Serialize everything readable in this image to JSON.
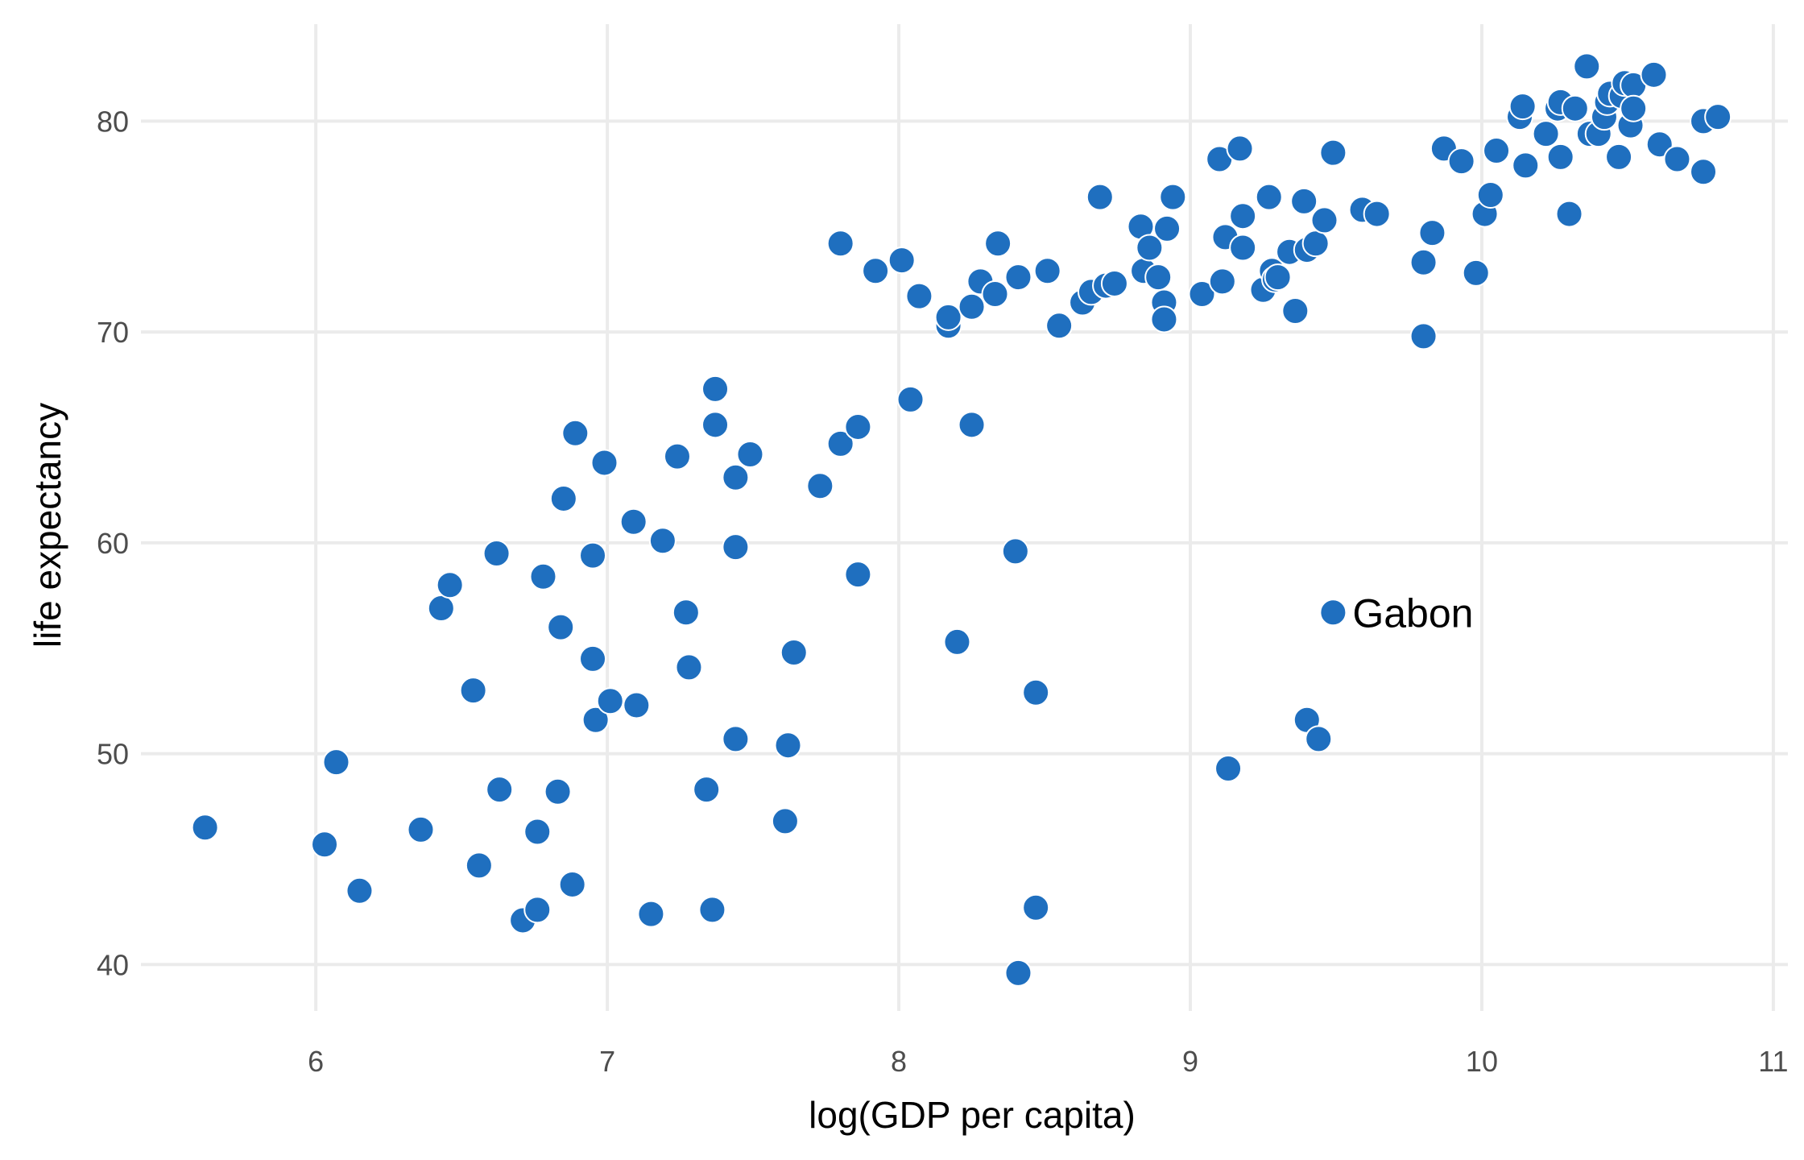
{
  "chart_data": {
    "type": "scatter",
    "title": "",
    "xlabel": "log(GDP per capita)",
    "ylabel": "life expectancy",
    "xlim": [
      5.4,
      11.05
    ],
    "ylim": [
      37.8,
      84.6
    ],
    "xticks": [
      6,
      7,
      8,
      9,
      10,
      11
    ],
    "yticks": [
      40,
      50,
      60,
      70,
      80
    ],
    "grid": true,
    "legend": "none",
    "point_color": "#1f6fbf",
    "point_outline": "#ffffff",
    "series": [
      {
        "points": [
          [
            5.62,
            46.5
          ],
          [
            6.03,
            45.7
          ],
          [
            6.07,
            49.6
          ],
          [
            6.15,
            43.5
          ],
          [
            6.36,
            46.4
          ],
          [
            6.43,
            56.9
          ],
          [
            6.46,
            58.0
          ],
          [
            6.54,
            53.0
          ],
          [
            6.56,
            44.7
          ],
          [
            6.62,
            59.5
          ],
          [
            6.63,
            48.3
          ],
          [
            6.71,
            42.1
          ],
          [
            6.76,
            42.6
          ],
          [
            6.76,
            46.3
          ],
          [
            6.78,
            58.4
          ],
          [
            6.83,
            48.2
          ],
          [
            6.84,
            56.0
          ],
          [
            6.85,
            62.1
          ],
          [
            6.88,
            43.8
          ],
          [
            6.89,
            65.2
          ],
          [
            6.95,
            54.5
          ],
          [
            6.95,
            59.4
          ],
          [
            6.96,
            51.6
          ],
          [
            6.99,
            63.8
          ],
          [
            7.01,
            52.5
          ],
          [
            7.09,
            61.0
          ],
          [
            7.1,
            52.3
          ],
          [
            7.15,
            42.4
          ],
          [
            7.19,
            60.1
          ],
          [
            7.24,
            64.1
          ],
          [
            7.27,
            56.7
          ],
          [
            7.28,
            54.1
          ],
          [
            7.34,
            48.3
          ],
          [
            7.36,
            42.6
          ],
          [
            7.37,
            67.3
          ],
          [
            7.37,
            65.6
          ],
          [
            7.44,
            50.7
          ],
          [
            7.44,
            63.1
          ],
          [
            7.44,
            59.8
          ],
          [
            7.49,
            64.2
          ],
          [
            7.61,
            46.8
          ],
          [
            7.62,
            50.4
          ],
          [
            7.64,
            54.8
          ],
          [
            7.73,
            62.7
          ],
          [
            7.8,
            64.7
          ],
          [
            7.8,
            74.2
          ],
          [
            7.86,
            65.5
          ],
          [
            7.86,
            58.5
          ],
          [
            7.92,
            72.9
          ],
          [
            8.01,
            73.4
          ],
          [
            8.04,
            66.8
          ],
          [
            8.07,
            71.7
          ],
          [
            8.17,
            70.3
          ],
          [
            8.17,
            70.7
          ],
          [
            8.2,
            55.3
          ],
          [
            8.25,
            71.2
          ],
          [
            8.25,
            65.6
          ],
          [
            8.28,
            72.4
          ],
          [
            8.33,
            71.8
          ],
          [
            8.34,
            74.2
          ],
          [
            8.4,
            59.6
          ],
          [
            8.41,
            72.6
          ],
          [
            8.41,
            39.6
          ],
          [
            8.47,
            42.7
          ],
          [
            8.47,
            52.9
          ],
          [
            8.51,
            72.9
          ],
          [
            8.55,
            70.3
          ],
          [
            8.63,
            71.4
          ],
          [
            8.66,
            71.9
          ],
          [
            8.69,
            76.4
          ],
          [
            8.71,
            72.2
          ],
          [
            8.74,
            72.3
          ],
          [
            8.83,
            75.0
          ],
          [
            8.84,
            72.9
          ],
          [
            8.86,
            74.0
          ],
          [
            8.89,
            72.6
          ],
          [
            8.91,
            71.4
          ],
          [
            8.91,
            70.6
          ],
          [
            8.92,
            74.9
          ],
          [
            8.94,
            76.4
          ],
          [
            9.04,
            71.8
          ],
          [
            9.1,
            78.2
          ],
          [
            9.11,
            72.4
          ],
          [
            9.12,
            74.5
          ],
          [
            9.13,
            49.3
          ],
          [
            9.17,
            78.7
          ],
          [
            9.18,
            75.5
          ],
          [
            9.18,
            74.0
          ],
          [
            9.25,
            72.0
          ],
          [
            9.27,
            76.4
          ],
          [
            9.28,
            72.9
          ],
          [
            9.29,
            72.5
          ],
          [
            9.3,
            72.6
          ],
          [
            9.34,
            73.8
          ],
          [
            9.36,
            71.0
          ],
          [
            9.39,
            76.2
          ],
          [
            9.4,
            73.9
          ],
          [
            9.4,
            51.6
          ],
          [
            9.43,
            74.2
          ],
          [
            9.44,
            50.7
          ],
          [
            9.46,
            75.3
          ],
          [
            9.49,
            78.5
          ],
          [
            9.49,
            56.7
          ],
          [
            9.59,
            75.8
          ],
          [
            9.64,
            75.6
          ],
          [
            9.8,
            73.3
          ],
          [
            9.8,
            69.8
          ],
          [
            9.83,
            74.7
          ],
          [
            9.87,
            78.7
          ],
          [
            9.93,
            78.1
          ],
          [
            9.98,
            72.8
          ],
          [
            10.01,
            75.6
          ],
          [
            10.03,
            76.5
          ],
          [
            10.05,
            78.6
          ],
          [
            10.13,
            80.2
          ],
          [
            10.14,
            80.7
          ],
          [
            10.15,
            77.9
          ],
          [
            10.22,
            79.4
          ],
          [
            10.26,
            80.6
          ],
          [
            10.27,
            78.3
          ],
          [
            10.27,
            80.9
          ],
          [
            10.3,
            75.6
          ],
          [
            10.32,
            80.6
          ],
          [
            10.36,
            82.6
          ],
          [
            10.37,
            79.4
          ],
          [
            10.4,
            79.4
          ],
          [
            10.42,
            80.2
          ],
          [
            10.43,
            80.9
          ],
          [
            10.44,
            81.3
          ],
          [
            10.47,
            78.3
          ],
          [
            10.48,
            81.2
          ],
          [
            10.49,
            81.8
          ],
          [
            10.51,
            79.8
          ],
          [
            10.52,
            81.7
          ],
          [
            10.52,
            80.6
          ],
          [
            10.59,
            82.2
          ],
          [
            10.61,
            78.9
          ],
          [
            10.67,
            78.2
          ],
          [
            10.76,
            80.0
          ],
          [
            10.76,
            77.6
          ],
          [
            10.81,
            80.2
          ]
        ]
      }
    ],
    "annotations": [
      {
        "label": "Gabon",
        "x": 9.49,
        "y": 56.7
      }
    ]
  }
}
